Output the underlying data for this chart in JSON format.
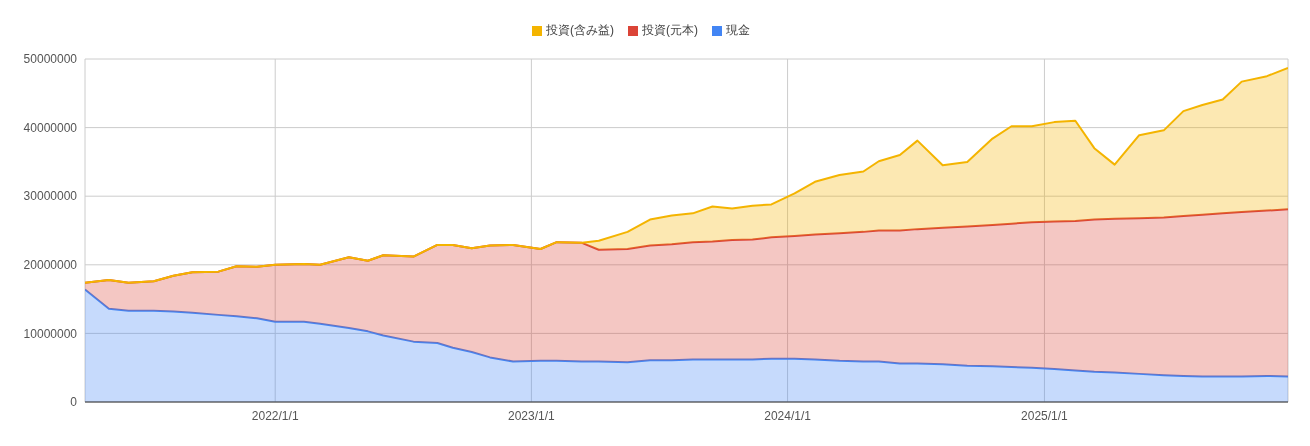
{
  "chart_data": {
    "type": "area",
    "stacked": true,
    "x": [
      "2021-04-05",
      "2021-05-09",
      "2021-06-06",
      "2021-07-12",
      "2021-08-09",
      "2021-09-05",
      "2021-10-12",
      "2021-11-07",
      "2021-12-06",
      "2022-01-01",
      "2022-02-11",
      "2022-03-06",
      "2022-04-16",
      "2022-05-13",
      "2022-06-04",
      "2022-07-17",
      "2022-08-20",
      "2022-09-11",
      "2022-10-08",
      "2022-11-03",
      "2022-12-06",
      "2023-01-14",
      "2023-02-06",
      "2023-03-14",
      "2023-04-07",
      "2023-05-18",
      "2023-06-19",
      "2023-07-20",
      "2023-08-19",
      "2023-09-16",
      "2023-10-14",
      "2023-11-12",
      "2023-12-09",
      "2024-01-11",
      "2024-02-09",
      "2024-03-15",
      "2024-04-18",
      "2024-05-10",
      "2024-06-09",
      "2024-07-04",
      "2024-08-09",
      "2024-09-13",
      "2024-10-19",
      "2024-11-15",
      "2024-12-14",
      "2025-01-15",
      "2025-02-14",
      "2025-03-13",
      "2025-04-11",
      "2025-05-16",
      "2025-06-20",
      "2025-07-18",
      "2025-08-14",
      "2025-09-12",
      "2025-10-09",
      "2025-11-14",
      "2025-12-14"
    ],
    "series": [
      {
        "name": "現金",
        "color": "#4285f4",
        "values": [
          16400000,
          13600000,
          13300000,
          13300000,
          13200000,
          13000000,
          12700000,
          12500000,
          12200000,
          11700000,
          11700000,
          11400000,
          10800000,
          10300000,
          9700000,
          8800000,
          8600000,
          7900000,
          7300000,
          6500000,
          5900000,
          6000000,
          6000000,
          5900000,
          5900000,
          5800000,
          6100000,
          6100000,
          6200000,
          6200000,
          6200000,
          6200000,
          6300000,
          6300000,
          6200000,
          6000000,
          5900000,
          5900000,
          5600000,
          5600000,
          5500000,
          5300000,
          5200000,
          5100000,
          5000000,
          4800000,
          4600000,
          4400000,
          4300000,
          4100000,
          3900000,
          3800000,
          3700000,
          3700000,
          3700000,
          3800000,
          3700000
        ]
      },
      {
        "name": "投資(元本)",
        "color": "#db4437",
        "values": [
          1000000,
          4200000,
          4100000,
          4300000,
          5200000,
          5900000,
          6300000,
          7300000,
          7500000,
          8300000,
          8400000,
          8600000,
          10300000,
          10300000,
          11700000,
          12400000,
          14300000,
          15000000,
          15100000,
          16300000,
          17000000,
          16300000,
          17300000,
          17300000,
          16300000,
          16500000,
          16700000,
          16900000,
          17100000,
          17200000,
          17400000,
          17500000,
          17700000,
          17900000,
          18200000,
          18600000,
          18900000,
          19100000,
          19400000,
          19600000,
          19900000,
          20300000,
          20600000,
          20900000,
          21200000,
          21500000,
          21800000,
          22200000,
          22400000,
          22700000,
          23000000,
          23300000,
          23600000,
          23800000,
          24000000,
          24100000,
          24400000
        ]
      },
      {
        "name": "投資(含み益)",
        "color": "#f4b400",
        "values": [
          0,
          0,
          0,
          0,
          0,
          0,
          0,
          0,
          0,
          0,
          0,
          0,
          0,
          0,
          0,
          0,
          0,
          0,
          0,
          0,
          0,
          0,
          0,
          0,
          1300000,
          2500000,
          3800000,
          4200000,
          4200000,
          5100000,
          4600000,
          4900000,
          4800000,
          6200000,
          7700000,
          8500000,
          8800000,
          10100000,
          11000000,
          12900000,
          9100000,
          9400000,
          12600000,
          14200000,
          14000000,
          14500000,
          14600000,
          10400000,
          7900000,
          12100000,
          12700000,
          15300000,
          16000000,
          16600000,
          19000000,
          19600000,
          20600000
        ]
      }
    ],
    "xlim": [
      "2021-04-05",
      "2025-12-14"
    ],
    "xticks": [
      {
        "value": "2022-01-01",
        "label": "2022/1/1"
      },
      {
        "value": "2023-01-01",
        "label": "2023/1/1"
      },
      {
        "value": "2024-01-01",
        "label": "2024/1/1"
      },
      {
        "value": "2025-01-01",
        "label": "2025/1/1"
      }
    ],
    "ylim": [
      0,
      50000000
    ],
    "yticks": [
      0,
      10000000,
      20000000,
      30000000,
      40000000,
      50000000
    ],
    "grid": true,
    "legend": "top"
  }
}
